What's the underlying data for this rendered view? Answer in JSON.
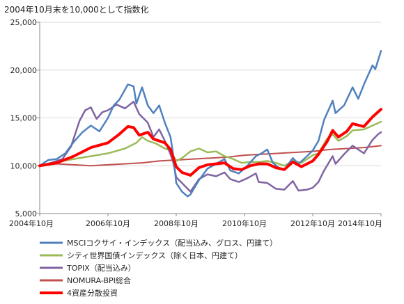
{
  "chart_data": {
    "type": "line",
    "title": "2004年10月末を10,000として指数化",
    "xlabel": "",
    "ylabel": "",
    "ylim": [
      5000,
      25000
    ],
    "yticks": [
      "5,000",
      "10,000",
      "15,000",
      "20,000",
      "25,000"
    ],
    "ytick_values": [
      5000,
      10000,
      15000,
      20000,
      25000
    ],
    "xlim": [
      "2004-10",
      "2014-10"
    ],
    "xticks": [
      "2004年10月",
      "2006年10月",
      "2008年10月",
      "2010年10月",
      "2012年10月",
      "2014年10月"
    ],
    "xtick_values": [
      "2004-10",
      "2006-10",
      "2008-10",
      "2010-10",
      "2012-10",
      "2014-10"
    ],
    "grid": "horizontal",
    "legend_position": "bottom",
    "series": [
      {
        "name": "MSCIコクサイ・インデックス（配当込み、グロス、円建て）",
        "color": "#4f81bd",
        "width": 2.5,
        "points": [
          [
            "2004-10",
            10000
          ],
          [
            "2005-01",
            10600
          ],
          [
            "2005-04",
            10700
          ],
          [
            "2005-07",
            11300
          ],
          [
            "2005-10",
            12500
          ],
          [
            "2006-01",
            13500
          ],
          [
            "2006-04",
            14200
          ],
          [
            "2006-07",
            13600
          ],
          [
            "2006-10",
            15000
          ],
          [
            "2006-12",
            16300
          ],
          [
            "2007-02",
            16900
          ],
          [
            "2007-05",
            18500
          ],
          [
            "2007-07",
            18300
          ],
          [
            "2007-08",
            16500
          ],
          [
            "2007-10",
            18200
          ],
          [
            "2007-12",
            16300
          ],
          [
            "2008-02",
            15500
          ],
          [
            "2008-04",
            16300
          ],
          [
            "2008-06",
            14500
          ],
          [
            "2008-08",
            13000
          ],
          [
            "2008-09",
            11000
          ],
          [
            "2008-10",
            8200
          ],
          [
            "2008-12",
            7300
          ],
          [
            "2009-02",
            6800
          ],
          [
            "2009-03",
            7000
          ],
          [
            "2009-06",
            8500
          ],
          [
            "2009-09",
            9700
          ],
          [
            "2009-12",
            10200
          ],
          [
            "2010-03",
            10700
          ],
          [
            "2010-05",
            9500
          ],
          [
            "2010-08",
            9200
          ],
          [
            "2010-11",
            10000
          ],
          [
            "2011-02",
            11000
          ],
          [
            "2011-04",
            11300
          ],
          [
            "2011-06",
            11700
          ],
          [
            "2011-08",
            10300
          ],
          [
            "2011-10",
            9800
          ],
          [
            "2011-12",
            9600
          ],
          [
            "2012-03",
            10800
          ],
          [
            "2012-05",
            10200
          ],
          [
            "2012-08",
            11000
          ],
          [
            "2012-10",
            11600
          ],
          [
            "2012-12",
            12600
          ],
          [
            "2013-02",
            14800
          ],
          [
            "2013-05",
            16800
          ],
          [
            "2013-06",
            15500
          ],
          [
            "2013-09",
            16300
          ],
          [
            "2013-12",
            18200
          ],
          [
            "2014-02",
            17000
          ],
          [
            "2014-04",
            18500
          ],
          [
            "2014-07",
            20500
          ],
          [
            "2014-08",
            20100
          ],
          [
            "2014-10",
            22000
          ]
        ]
      },
      {
        "name": "シティ世界国債インデックス（除く日本、円建て）",
        "color": "#9bbb59",
        "width": 2.5,
        "points": [
          [
            "2004-10",
            10000
          ],
          [
            "2005-04",
            10400
          ],
          [
            "2005-10",
            10700
          ],
          [
            "2006-04",
            11000
          ],
          [
            "2006-10",
            11300
          ],
          [
            "2007-04",
            11800
          ],
          [
            "2007-08",
            12400
          ],
          [
            "2007-10",
            13000
          ],
          [
            "2007-12",
            12600
          ],
          [
            "2008-03",
            12300
          ],
          [
            "2008-06",
            11800
          ],
          [
            "2008-08",
            11600
          ],
          [
            "2008-10",
            10500
          ],
          [
            "2008-12",
            10800
          ],
          [
            "2009-03",
            11500
          ],
          [
            "2009-06",
            11800
          ],
          [
            "2009-09",
            11400
          ],
          [
            "2009-12",
            11500
          ],
          [
            "2010-03",
            11000
          ],
          [
            "2010-06",
            10700
          ],
          [
            "2010-09",
            10300
          ],
          [
            "2010-12",
            10400
          ],
          [
            "2011-03",
            10400
          ],
          [
            "2011-06",
            10500
          ],
          [
            "2011-09",
            10300
          ],
          [
            "2011-12",
            10000
          ],
          [
            "2012-03",
            10500
          ],
          [
            "2012-06",
            10300
          ],
          [
            "2012-10",
            11100
          ],
          [
            "2012-12",
            11300
          ],
          [
            "2013-03",
            12800
          ],
          [
            "2013-05",
            13300
          ],
          [
            "2013-07",
            12600
          ],
          [
            "2013-10",
            13100
          ],
          [
            "2013-12",
            13700
          ],
          [
            "2014-04",
            13800
          ],
          [
            "2014-07",
            14200
          ],
          [
            "2014-10",
            14600
          ]
        ]
      },
      {
        "name": "TOPIX（配当込み）",
        "color": "#8064a2",
        "width": 2.5,
        "points": [
          [
            "2004-10",
            10000
          ],
          [
            "2005-02",
            10300
          ],
          [
            "2005-06",
            10700
          ],
          [
            "2005-09",
            12000
          ],
          [
            "2005-12",
            14700
          ],
          [
            "2006-02",
            15800
          ],
          [
            "2006-04",
            16100
          ],
          [
            "2006-06",
            14900
          ],
          [
            "2006-08",
            15600
          ],
          [
            "2006-10",
            15800
          ],
          [
            "2007-01",
            16400
          ],
          [
            "2007-04",
            16000
          ],
          [
            "2007-07",
            16700
          ],
          [
            "2007-09",
            15400
          ],
          [
            "2007-12",
            14500
          ],
          [
            "2008-02",
            13000
          ],
          [
            "2008-04",
            13800
          ],
          [
            "2008-06",
            12600
          ],
          [
            "2008-08",
            11200
          ],
          [
            "2008-09",
            10300
          ],
          [
            "2008-10",
            8800
          ],
          [
            "2008-12",
            8200
          ],
          [
            "2009-03",
            7300
          ],
          [
            "2009-06",
            8600
          ],
          [
            "2009-09",
            9100
          ],
          [
            "2009-12",
            8900
          ],
          [
            "2010-03",
            9300
          ],
          [
            "2010-05",
            8600
          ],
          [
            "2010-08",
            8300
          ],
          [
            "2010-11",
            8700
          ],
          [
            "2011-02",
            9200
          ],
          [
            "2011-03",
            8300
          ],
          [
            "2011-06",
            8200
          ],
          [
            "2011-09",
            7600
          ],
          [
            "2011-12",
            7500
          ],
          [
            "2012-03",
            8400
          ],
          [
            "2012-05",
            7400
          ],
          [
            "2012-08",
            7500
          ],
          [
            "2012-10",
            7700
          ],
          [
            "2012-12",
            8300
          ],
          [
            "2013-02",
            9500
          ],
          [
            "2013-05",
            11000
          ],
          [
            "2013-06",
            10200
          ],
          [
            "2013-09",
            11200
          ],
          [
            "2013-12",
            12100
          ],
          [
            "2014-04",
            11300
          ],
          [
            "2014-07",
            12700
          ],
          [
            "2014-09",
            13300
          ],
          [
            "2014-10",
            13500
          ]
        ]
      },
      {
        "name": "NOMURA-BPI総合",
        "color": "#c0504d",
        "width": 2,
        "points": [
          [
            "2004-10",
            10000
          ],
          [
            "2005-04",
            10200
          ],
          [
            "2005-10",
            10100
          ],
          [
            "2006-04",
            10000
          ],
          [
            "2006-10",
            10100
          ],
          [
            "2007-04",
            10200
          ],
          [
            "2007-10",
            10300
          ],
          [
            "2008-04",
            10500
          ],
          [
            "2008-10",
            10600
          ],
          [
            "2009-04",
            10700
          ],
          [
            "2009-10",
            10800
          ],
          [
            "2010-04",
            10900
          ],
          [
            "2010-10",
            11100
          ],
          [
            "2011-04",
            11200
          ],
          [
            "2011-10",
            11300
          ],
          [
            "2012-04",
            11400
          ],
          [
            "2012-10",
            11500
          ],
          [
            "2013-04",
            11700
          ],
          [
            "2013-10",
            11800
          ],
          [
            "2014-04",
            11900
          ],
          [
            "2014-10",
            12100
          ]
        ]
      },
      {
        "name": "4資産分散投資",
        "color": "#ff0000",
        "width": 4,
        "points": [
          [
            "2004-10",
            10000
          ],
          [
            "2005-04",
            10300
          ],
          [
            "2005-10",
            11000
          ],
          [
            "2006-04",
            11900
          ],
          [
            "2006-10",
            12400
          ],
          [
            "2007-02",
            13300
          ],
          [
            "2007-05",
            14100
          ],
          [
            "2007-07",
            14000
          ],
          [
            "2007-09",
            13200
          ],
          [
            "2007-12",
            13500
          ],
          [
            "2008-02",
            12800
          ],
          [
            "2008-06",
            12400
          ],
          [
            "2008-08",
            11700
          ],
          [
            "2008-10",
            9900
          ],
          [
            "2008-12",
            9300
          ],
          [
            "2009-03",
            9000
          ],
          [
            "2009-06",
            9800
          ],
          [
            "2009-09",
            10100
          ],
          [
            "2009-12",
            10200
          ],
          [
            "2010-03",
            10300
          ],
          [
            "2010-06",
            9700
          ],
          [
            "2010-09",
            9600
          ],
          [
            "2010-12",
            10000
          ],
          [
            "2011-03",
            10200
          ],
          [
            "2011-06",
            10200
          ],
          [
            "2011-09",
            9800
          ],
          [
            "2011-12",
            9600
          ],
          [
            "2012-03",
            10400
          ],
          [
            "2012-06",
            9900
          ],
          [
            "2012-10",
            10500
          ],
          [
            "2012-12",
            11200
          ],
          [
            "2013-03",
            12500
          ],
          [
            "2013-05",
            13700
          ],
          [
            "2013-07",
            13000
          ],
          [
            "2013-10",
            13600
          ],
          [
            "2013-12",
            14400
          ],
          [
            "2014-04",
            14100
          ],
          [
            "2014-07",
            15100
          ],
          [
            "2014-10",
            15900
          ]
        ]
      }
    ]
  }
}
